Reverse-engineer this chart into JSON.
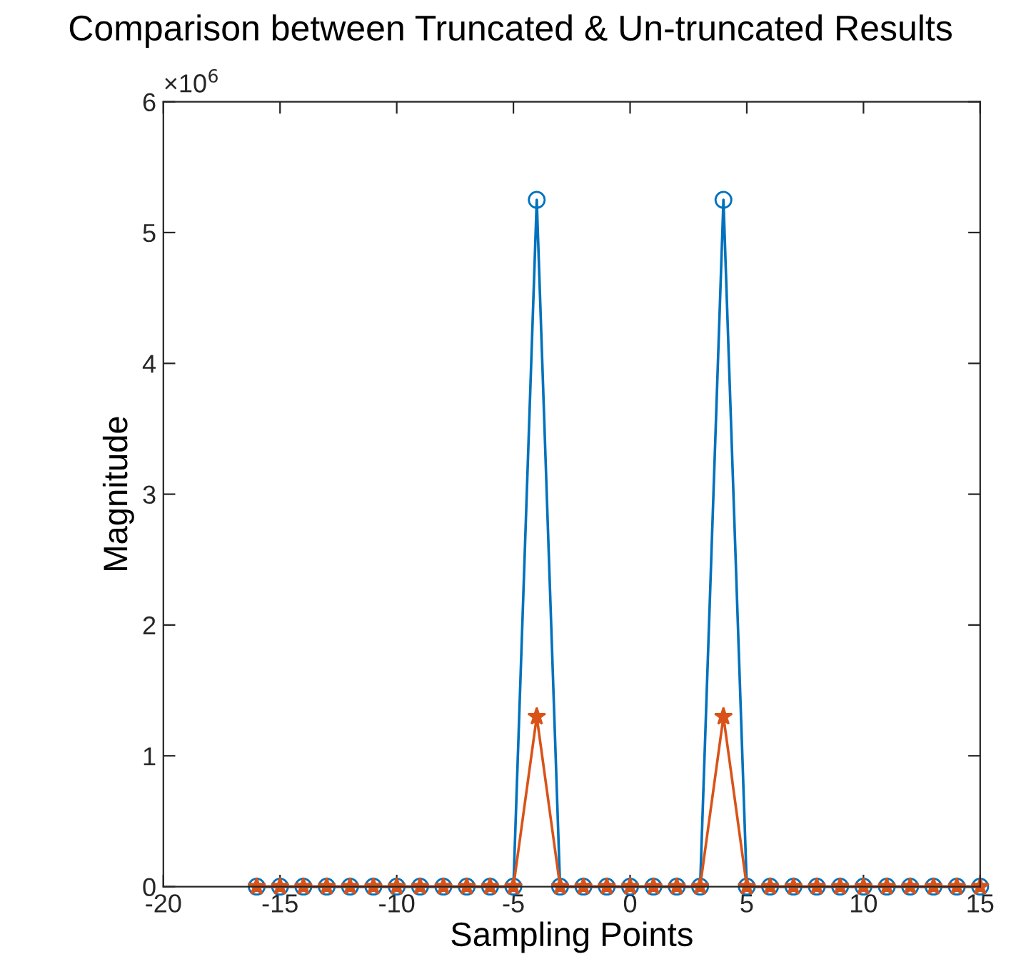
{
  "chart_data": {
    "type": "line",
    "title": "Comparison between Truncated & Un-truncated Results",
    "xlabel": "Sampling Points",
    "ylabel": "Magnitude",
    "x": [
      -16,
      -15,
      -14,
      -13,
      -12,
      -11,
      -10,
      -9,
      -8,
      -7,
      -6,
      -5,
      -4,
      -3,
      -2,
      -1,
      0,
      1,
      2,
      3,
      4,
      5,
      6,
      7,
      8,
      9,
      10,
      11,
      12,
      13,
      14,
      15
    ],
    "series": [
      {
        "color": "#0072bd",
        "marker": "circle",
        "values": [
          0,
          0,
          0,
          0,
          0,
          0,
          0,
          0,
          0,
          0,
          0,
          0,
          5.25,
          0,
          0,
          0,
          0,
          0,
          0,
          0,
          5.25,
          0,
          0,
          0,
          0,
          0,
          0,
          0,
          0,
          0,
          0,
          0
        ]
      },
      {
        "color": "#d95319",
        "marker": "star",
        "values": [
          0,
          0,
          0,
          0,
          0,
          0,
          0,
          0,
          0,
          0,
          0,
          0,
          1.3,
          0,
          0,
          0,
          0,
          0,
          0,
          0,
          1.3,
          0,
          0,
          0,
          0,
          0,
          0,
          0,
          0,
          0,
          0,
          0
        ]
      }
    ],
    "xlim": [
      -20,
      15
    ],
    "xticks": [
      -20,
      -15,
      -10,
      -5,
      0,
      5,
      10,
      15
    ],
    "ylim": [
      0,
      6
    ],
    "yticks": [
      0,
      1,
      2,
      3,
      4,
      5,
      6
    ],
    "annotations": [
      "×10$^{6}$"
    ],
    "grid": false,
    "legend": false,
    "line_style": "solid"
  }
}
